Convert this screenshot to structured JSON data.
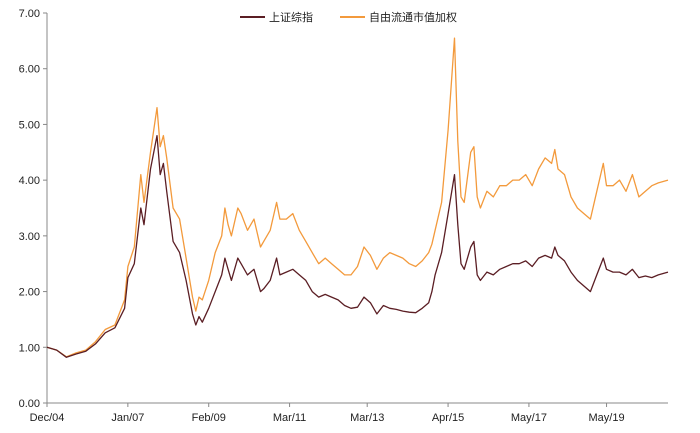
{
  "chart_data": {
    "type": "line",
    "title": "",
    "xlabel": "",
    "ylabel": "",
    "ylim": [
      0,
      7
    ],
    "xlim": [
      "2004-12",
      "2020-12"
    ],
    "grid": false,
    "legend_position": "top-center",
    "y_ticks": [
      "0.00",
      "1.00",
      "2.00",
      "3.00",
      "4.00",
      "5.00",
      "6.00",
      "7.00"
    ],
    "x_ticks": [
      {
        "date": "2004-12",
        "label": "Dec/04"
      },
      {
        "date": "2007-01",
        "label": "Jan/07"
      },
      {
        "date": "2009-02",
        "label": "Feb/09"
      },
      {
        "date": "2011-03",
        "label": "Mar/11"
      },
      {
        "date": "2013-03",
        "label": "Mar/13"
      },
      {
        "date": "2015-04",
        "label": "Apr/15"
      },
      {
        "date": "2017-05",
        "label": "May/17"
      },
      {
        "date": "2019-05",
        "label": "May/19"
      }
    ],
    "series": [
      {
        "name": "上证综指",
        "color": "#5b1e24",
        "points": [
          [
            "2004-12",
            1.0
          ],
          [
            "2005-03",
            0.95
          ],
          [
            "2005-06",
            0.82
          ],
          [
            "2005-09",
            0.88
          ],
          [
            "2005-12",
            0.93
          ],
          [
            "2006-03",
            1.06
          ],
          [
            "2006-06",
            1.26
          ],
          [
            "2006-09",
            1.35
          ],
          [
            "2006-12",
            1.7
          ],
          [
            "2007-01",
            2.25
          ],
          [
            "2007-03",
            2.5
          ],
          [
            "2007-05",
            3.5
          ],
          [
            "2007-06",
            3.2
          ],
          [
            "2007-08",
            4.2
          ],
          [
            "2007-10",
            4.8
          ],
          [
            "2007-11",
            4.1
          ],
          [
            "2007-12",
            4.3
          ],
          [
            "2008-01",
            3.8
          ],
          [
            "2008-03",
            2.9
          ],
          [
            "2008-05",
            2.7
          ],
          [
            "2008-07",
            2.2
          ],
          [
            "2008-09",
            1.6
          ],
          [
            "2008-10",
            1.4
          ],
          [
            "2008-11",
            1.55
          ],
          [
            "2008-12",
            1.45
          ],
          [
            "2009-02",
            1.7
          ],
          [
            "2009-04",
            2.0
          ],
          [
            "2009-06",
            2.3
          ],
          [
            "2009-07",
            2.6
          ],
          [
            "2009-08",
            2.4
          ],
          [
            "2009-09",
            2.2
          ],
          [
            "2009-11",
            2.6
          ],
          [
            "2009-12",
            2.5
          ],
          [
            "2010-02",
            2.3
          ],
          [
            "2010-04",
            2.4
          ],
          [
            "2010-06",
            2.0
          ],
          [
            "2010-07",
            2.05
          ],
          [
            "2010-09",
            2.2
          ],
          [
            "2010-11",
            2.6
          ],
          [
            "2010-12",
            2.3
          ],
          [
            "2011-02",
            2.35
          ],
          [
            "2011-04",
            2.4
          ],
          [
            "2011-06",
            2.3
          ],
          [
            "2011-08",
            2.2
          ],
          [
            "2011-10",
            2.0
          ],
          [
            "2011-12",
            1.9
          ],
          [
            "2012-02",
            1.95
          ],
          [
            "2012-04",
            1.9
          ],
          [
            "2012-06",
            1.85
          ],
          [
            "2012-08",
            1.75
          ],
          [
            "2012-10",
            1.7
          ],
          [
            "2012-12",
            1.72
          ],
          [
            "2013-02",
            1.9
          ],
          [
            "2013-04",
            1.8
          ],
          [
            "2013-06",
            1.6
          ],
          [
            "2013-08",
            1.75
          ],
          [
            "2013-10",
            1.7
          ],
          [
            "2013-12",
            1.68
          ],
          [
            "2014-02",
            1.65
          ],
          [
            "2014-04",
            1.63
          ],
          [
            "2014-06",
            1.62
          ],
          [
            "2014-08",
            1.7
          ],
          [
            "2014-10",
            1.8
          ],
          [
            "2014-11",
            2.0
          ],
          [
            "2014-12",
            2.3
          ],
          [
            "2015-02",
            2.7
          ],
          [
            "2015-04",
            3.4
          ],
          [
            "2015-06",
            4.1
          ],
          [
            "2015-07",
            3.2
          ],
          [
            "2015-08",
            2.5
          ],
          [
            "2015-09",
            2.4
          ],
          [
            "2015-11",
            2.8
          ],
          [
            "2015-12",
            2.9
          ],
          [
            "2016-01",
            2.3
          ],
          [
            "2016-02",
            2.2
          ],
          [
            "2016-04",
            2.35
          ],
          [
            "2016-06",
            2.3
          ],
          [
            "2016-08",
            2.4
          ],
          [
            "2016-10",
            2.45
          ],
          [
            "2016-12",
            2.5
          ],
          [
            "2017-02",
            2.5
          ],
          [
            "2017-04",
            2.55
          ],
          [
            "2017-06",
            2.45
          ],
          [
            "2017-08",
            2.6
          ],
          [
            "2017-10",
            2.65
          ],
          [
            "2017-12",
            2.6
          ],
          [
            "2018-01",
            2.8
          ],
          [
            "2018-02",
            2.65
          ],
          [
            "2018-04",
            2.55
          ],
          [
            "2018-06",
            2.35
          ],
          [
            "2018-08",
            2.2
          ],
          [
            "2018-10",
            2.1
          ],
          [
            "2018-12",
            2.0
          ],
          [
            "2019-02",
            2.3
          ],
          [
            "2019-04",
            2.6
          ],
          [
            "2019-05",
            2.4
          ],
          [
            "2019-07",
            2.35
          ],
          [
            "2019-09",
            2.35
          ],
          [
            "2019-11",
            2.3
          ],
          [
            "2020-01",
            2.4
          ],
          [
            "2020-03",
            2.25
          ],
          [
            "2020-05",
            2.28
          ],
          [
            "2020-07",
            2.25
          ],
          [
            "2020-09",
            2.3
          ],
          [
            "2020-12",
            2.35
          ]
        ]
      },
      {
        "name": "自由流通市值加权",
        "color": "#f39a3c",
        "points": [
          [
            "2004-12",
            1.0
          ],
          [
            "2005-03",
            0.95
          ],
          [
            "2005-06",
            0.83
          ],
          [
            "2005-09",
            0.9
          ],
          [
            "2005-12",
            0.95
          ],
          [
            "2006-03",
            1.1
          ],
          [
            "2006-06",
            1.32
          ],
          [
            "2006-09",
            1.4
          ],
          [
            "2006-12",
            1.85
          ],
          [
            "2007-01",
            2.45
          ],
          [
            "2007-03",
            2.8
          ],
          [
            "2007-05",
            4.1
          ],
          [
            "2007-06",
            3.6
          ],
          [
            "2007-08",
            4.5
          ],
          [
            "2007-10",
            5.3
          ],
          [
            "2007-11",
            4.6
          ],
          [
            "2007-12",
            4.8
          ],
          [
            "2008-01",
            4.4
          ],
          [
            "2008-03",
            3.5
          ],
          [
            "2008-05",
            3.3
          ],
          [
            "2008-07",
            2.6
          ],
          [
            "2008-09",
            1.9
          ],
          [
            "2008-10",
            1.65
          ],
          [
            "2008-11",
            1.9
          ],
          [
            "2008-12",
            1.85
          ],
          [
            "2009-02",
            2.2
          ],
          [
            "2009-04",
            2.7
          ],
          [
            "2009-06",
            3.0
          ],
          [
            "2009-07",
            3.5
          ],
          [
            "2009-08",
            3.2
          ],
          [
            "2009-09",
            3.0
          ],
          [
            "2009-11",
            3.5
          ],
          [
            "2009-12",
            3.4
          ],
          [
            "2010-02",
            3.1
          ],
          [
            "2010-04",
            3.3
          ],
          [
            "2010-06",
            2.8
          ],
          [
            "2010-07",
            2.9
          ],
          [
            "2010-09",
            3.1
          ],
          [
            "2010-11",
            3.6
          ],
          [
            "2010-12",
            3.3
          ],
          [
            "2011-02",
            3.3
          ],
          [
            "2011-04",
            3.4
          ],
          [
            "2011-06",
            3.1
          ],
          [
            "2011-08",
            2.9
          ],
          [
            "2011-10",
            2.7
          ],
          [
            "2011-12",
            2.5
          ],
          [
            "2012-02",
            2.6
          ],
          [
            "2012-04",
            2.5
          ],
          [
            "2012-06",
            2.4
          ],
          [
            "2012-08",
            2.3
          ],
          [
            "2012-10",
            2.3
          ],
          [
            "2012-12",
            2.45
          ],
          [
            "2013-02",
            2.8
          ],
          [
            "2013-04",
            2.65
          ],
          [
            "2013-06",
            2.4
          ],
          [
            "2013-08",
            2.6
          ],
          [
            "2013-10",
            2.7
          ],
          [
            "2013-12",
            2.65
          ],
          [
            "2014-02",
            2.6
          ],
          [
            "2014-04",
            2.5
          ],
          [
            "2014-06",
            2.45
          ],
          [
            "2014-08",
            2.55
          ],
          [
            "2014-10",
            2.7
          ],
          [
            "2014-11",
            2.85
          ],
          [
            "2014-12",
            3.1
          ],
          [
            "2015-02",
            3.6
          ],
          [
            "2015-04",
            4.9
          ],
          [
            "2015-06",
            6.55
          ],
          [
            "2015-07",
            4.7
          ],
          [
            "2015-08",
            3.7
          ],
          [
            "2015-09",
            3.6
          ],
          [
            "2015-11",
            4.5
          ],
          [
            "2015-12",
            4.6
          ],
          [
            "2016-01",
            3.7
          ],
          [
            "2016-02",
            3.5
          ],
          [
            "2016-04",
            3.8
          ],
          [
            "2016-06",
            3.7
          ],
          [
            "2016-08",
            3.9
          ],
          [
            "2016-10",
            3.9
          ],
          [
            "2016-12",
            4.0
          ],
          [
            "2017-02",
            4.0
          ],
          [
            "2017-04",
            4.1
          ],
          [
            "2017-06",
            3.9
          ],
          [
            "2017-08",
            4.2
          ],
          [
            "2017-10",
            4.4
          ],
          [
            "2017-12",
            4.3
          ],
          [
            "2018-01",
            4.55
          ],
          [
            "2018-02",
            4.2
          ],
          [
            "2018-04",
            4.1
          ],
          [
            "2018-06",
            3.7
          ],
          [
            "2018-08",
            3.5
          ],
          [
            "2018-10",
            3.4
          ],
          [
            "2018-12",
            3.3
          ],
          [
            "2019-02",
            3.8
          ],
          [
            "2019-04",
            4.3
          ],
          [
            "2019-05",
            3.9
          ],
          [
            "2019-07",
            3.9
          ],
          [
            "2019-09",
            4.0
          ],
          [
            "2019-11",
            3.8
          ],
          [
            "2020-01",
            4.1
          ],
          [
            "2020-03",
            3.7
          ],
          [
            "2020-05",
            3.8
          ],
          [
            "2020-07",
            3.9
          ],
          [
            "2020-09",
            3.95
          ],
          [
            "2020-12",
            4.0
          ]
        ]
      }
    ]
  }
}
